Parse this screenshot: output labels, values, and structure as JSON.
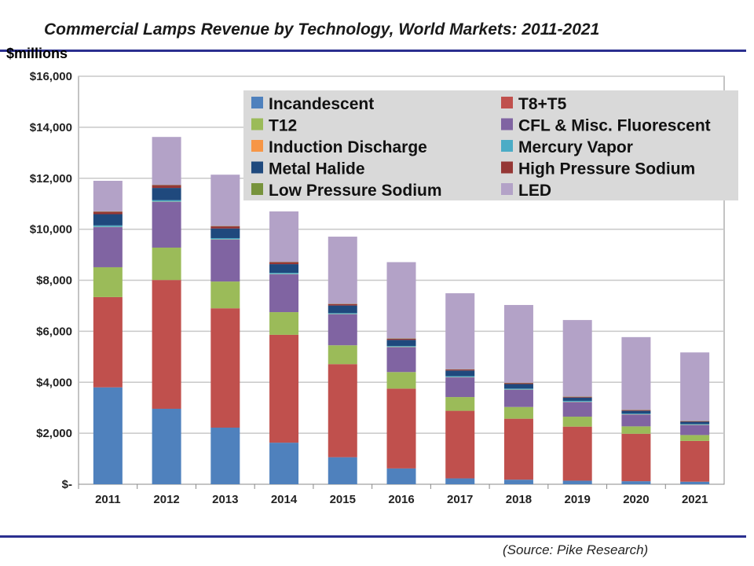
{
  "chart_data": {
    "type": "bar",
    "stacked": true,
    "title": "Commercial Lamps Revenue by Technology, World Markets: 2011-2021",
    "ylabel": "$millions",
    "source": "(Source: Pike Research)",
    "ylim": [
      0,
      16000
    ],
    "grid": true,
    "legend_position": "top-right",
    "yticks": [
      "$-",
      "$2,000",
      "$4,000",
      "$6,000",
      "$8,000",
      "$10,000",
      "$12,000",
      "$14,000",
      "$16,000"
    ],
    "categories": [
      "2011",
      "2012",
      "2013",
      "2014",
      "2015",
      "2016",
      "2017",
      "2018",
      "2019",
      "2020",
      "2021"
    ],
    "series": [
      {
        "name": "Incandescent",
        "color": "#4f81bd",
        "values": [
          3800,
          2960,
          2220,
          1630,
          1060,
          620,
          230,
          180,
          140,
          120,
          100
        ]
      },
      {
        "name": "T8+T5",
        "color": "#c0504d",
        "values": [
          3540,
          5050,
          4680,
          4230,
          3650,
          3130,
          2650,
          2390,
          2120,
          1860,
          1600
        ]
      },
      {
        "name": "T12",
        "color": "#9bbb59",
        "values": [
          1170,
          1270,
          1050,
          890,
          740,
          650,
          540,
          460,
          390,
          290,
          230
        ]
      },
      {
        "name": "CFL & Misc. Fluorescent",
        "color": "#8064a2",
        "values": [
          1570,
          1790,
          1640,
          1480,
          1210,
          970,
          770,
          670,
          570,
          460,
          390
        ]
      },
      {
        "name": "Induction Discharge",
        "color": "#f79646",
        "values": [
          10,
          10,
          10,
          10,
          10,
          10,
          10,
          10,
          10,
          10,
          10
        ]
      },
      {
        "name": "Mercury Vapor",
        "color": "#4bacc6",
        "values": [
          60,
          60,
          50,
          50,
          40,
          40,
          40,
          40,
          40,
          30,
          30
        ]
      },
      {
        "name": "Metal Halide",
        "color": "#1f497d",
        "values": [
          440,
          480,
          380,
          340,
          300,
          240,
          220,
          180,
          130,
          110,
          90
        ]
      },
      {
        "name": "High Pressure Sodium",
        "color": "#953735",
        "values": [
          100,
          110,
          90,
          80,
          60,
          50,
          40,
          40,
          30,
          30,
          20
        ]
      },
      {
        "name": "Low Pressure Sodium",
        "color": "#77933c",
        "values": [
          10,
          10,
          10,
          10,
          10,
          10,
          10,
          10,
          10,
          10,
          10
        ]
      },
      {
        "name": "LED",
        "color": "#b3a2c7",
        "values": [
          1200,
          1880,
          2010,
          1980,
          2630,
          2990,
          2980,
          3050,
          3000,
          2850,
          2690
        ]
      }
    ]
  }
}
